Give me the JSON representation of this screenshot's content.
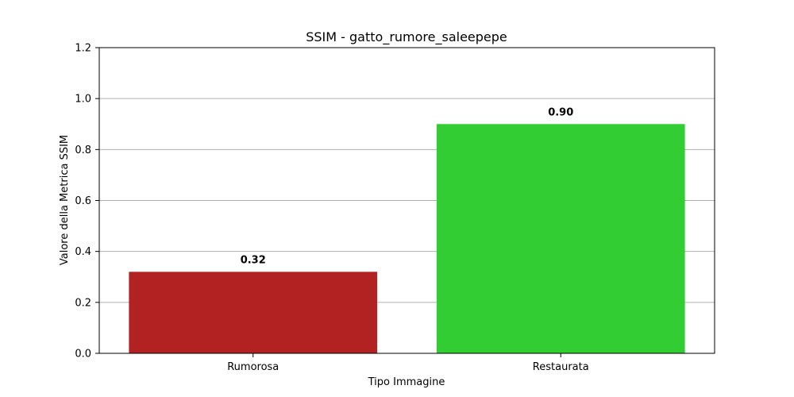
{
  "chart_data": {
    "type": "bar",
    "title": "SSIM - gatto_rumore_saleepepe",
    "xlabel": "Tipo Immagine",
    "ylabel": "Valore della Metrica SSIM",
    "categories": [
      "Rumorosa",
      "Restaurata"
    ],
    "values": [
      0.32,
      0.9
    ],
    "value_labels": [
      "0.32",
      "0.90"
    ],
    "bar_colors": [
      "#b22222",
      "#32cd32"
    ],
    "ylim": [
      0,
      1.2
    ],
    "yticks": [
      "0.0",
      "0.2",
      "0.4",
      "0.6",
      "0.8",
      "1.0",
      "1.2"
    ],
    "grid": "y-axis",
    "legend": "none"
  }
}
